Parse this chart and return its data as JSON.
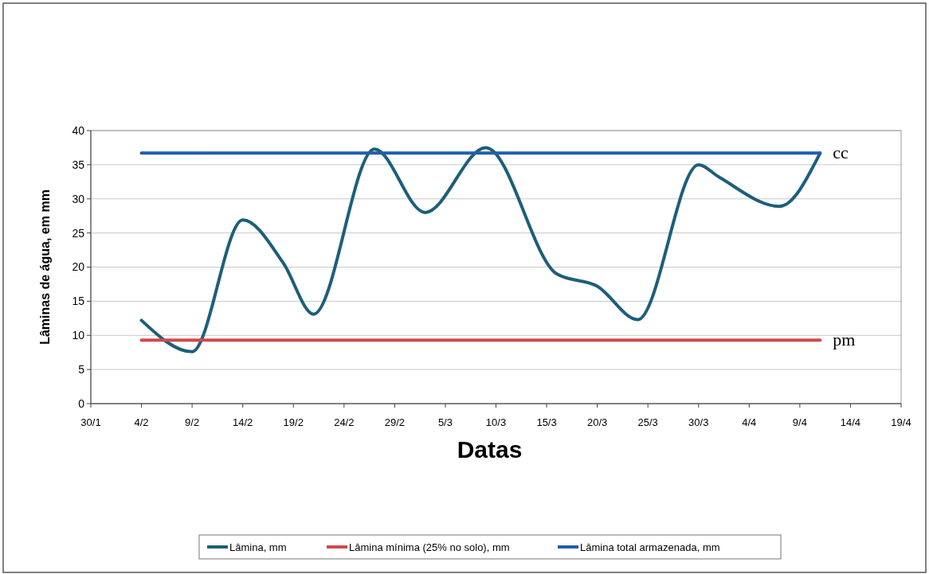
{
  "chart_data": {
    "type": "line",
    "xlabel": "Datas",
    "ylabel": "Lâminas de água, em mm",
    "xlim": [
      "--01-30",
      "--04-19"
    ],
    "xticks": [
      {
        "value": "--01-30",
        "label": "30/1"
      },
      {
        "value": "--02-04",
        "label": "4/2"
      },
      {
        "value": "--02-09",
        "label": "9/2"
      },
      {
        "value": "--02-14",
        "label": "14/2"
      },
      {
        "value": "--02-19",
        "label": "19/2"
      },
      {
        "value": "--02-24",
        "label": "24/2"
      },
      {
        "value": "--02-29",
        "label": "29/2"
      },
      {
        "value": "--03-05",
        "label": "5/3"
      },
      {
        "value": "--03-10",
        "label": "10/3"
      },
      {
        "value": "--03-15",
        "label": "15/3"
      },
      {
        "value": "--03-20",
        "label": "20/3"
      },
      {
        "value": "--03-25",
        "label": "25/3"
      },
      {
        "value": "--03-30",
        "label": "30/3"
      },
      {
        "value": "--04-04",
        "label": "4/4"
      },
      {
        "value": "--04-09",
        "label": "9/4"
      },
      {
        "value": "--04-14",
        "label": "14/4"
      },
      {
        "value": "--04-19",
        "label": "19/4"
      }
    ],
    "ylim": [
      0,
      40
    ],
    "yticks": [
      0,
      5,
      10,
      15,
      20,
      25,
      30,
      35,
      40
    ],
    "grid": "y",
    "legend": "bottom",
    "marker": "none",
    "line_style": "solid",
    "series": [
      {
        "name": "Lâmina, mm",
        "color": "#1d5f7a",
        "x": [
          "--02-04",
          "--02-09",
          "--02-14",
          "--02-18",
          "--02-21",
          "--02-27",
          "--03-03",
          "--03-09",
          "--03-16",
          "--03-20",
          "--03-24",
          "--03-30",
          "--04-01",
          "--04-07",
          "--04-11"
        ],
        "values": [
          12.2,
          7.6,
          26.9,
          20.6,
          13.1,
          37.3,
          28.0,
          37.5,
          19.0,
          17.2,
          12.3,
          35.0,
          33.2,
          28.9,
          36.7
        ]
      },
      {
        "name": "Lâmina mínima (25% no solo), mm",
        "color": "#d04a4a",
        "x": [
          "--02-04",
          "--04-11"
        ],
        "values": [
          9.3,
          9.3
        ]
      },
      {
        "name": "Lâmina total armazenada, mm",
        "color": "#1f5fa8",
        "x": [
          "--02-04",
          "--04-11"
        ],
        "values": [
          36.7,
          36.7
        ]
      }
    ],
    "annotations": [
      {
        "text": "cc",
        "x": "--04-11",
        "y": 36.7
      },
      {
        "text": "pm",
        "x": "--04-11",
        "y": 9.3
      }
    ]
  }
}
